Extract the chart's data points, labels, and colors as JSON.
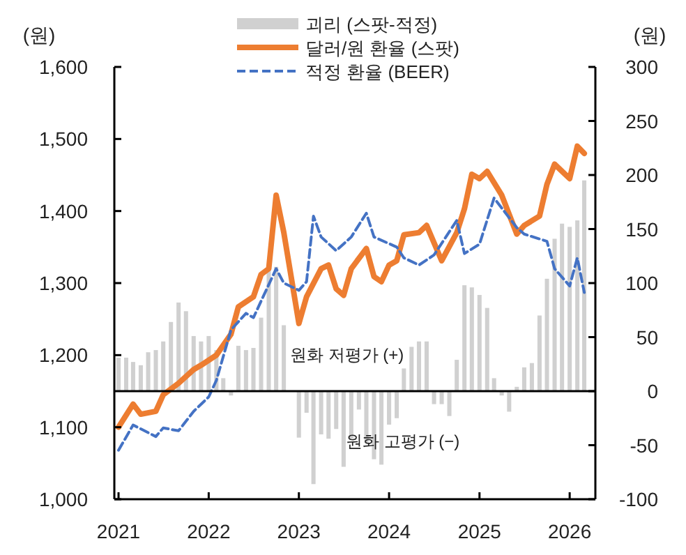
{
  "chart_data": {
    "type": "line",
    "xlim": [
      "2020-12-15",
      "2026-04-15"
    ],
    "xticks": [
      {
        "value": "2021",
        "label": "2021"
      },
      {
        "value": "2022",
        "label": "2022"
      },
      {
        "value": "2023",
        "label": "2023"
      },
      {
        "value": "2024",
        "label": "2024"
      },
      {
        "value": "2025",
        "label": "2025"
      },
      {
        "value": "2026",
        "label": "2026"
      }
    ],
    "ylim": [
      1000,
      1600
    ],
    "yticks": [
      {
        "value": 1000,
        "label": "1,000"
      },
      {
        "value": 1100,
        "label": "1,100"
      },
      {
        "value": 1200,
        "label": "1,200"
      },
      {
        "value": 1300,
        "label": "1,300"
      },
      {
        "value": 1400,
        "label": "1,400"
      },
      {
        "value": 1500,
        "label": "1,500"
      },
      {
        "value": 1600,
        "label": "1,600"
      }
    ],
    "y2lim": [
      -100,
      300
    ],
    "y2ticks": [
      -100,
      -50,
      0,
      50,
      100,
      150,
      200,
      250,
      300
    ],
    "ylabel": "(원)",
    "y2label": "(원)",
    "legend": "top",
    "grid": false,
    "ref_lines": [
      {
        "axis": "y2",
        "value": 0,
        "color": "#000000"
      }
    ],
    "annotations": [
      "원화 저평가 (+)",
      "원화 고평가 (−)"
    ],
    "series": [
      {
        "type": "bar",
        "axis": "y2",
        "name": "괴리 (스팟-적정)",
        "color": "#d0d0d0",
        "x": [
          "2021-01",
          "2021-02",
          "2021-03",
          "2021-04",
          "2021-05",
          "2021-06",
          "2021-07",
          "2021-08",
          "2021-09",
          "2021-10",
          "2021-11",
          "2021-12",
          "2022-01",
          "2022-02",
          "2022-03",
          "2022-04",
          "2022-05",
          "2022-06",
          "2022-07",
          "2022-08",
          "2022-09",
          "2022-10",
          "2022-11",
          "2022-12",
          "2023-01",
          "2023-02",
          "2023-03",
          "2023-04",
          "2023-05",
          "2023-06",
          "2023-07",
          "2023-08",
          "2023-09",
          "2023-10",
          "2023-11",
          "2023-12",
          "2024-01",
          "2024-02",
          "2024-03",
          "2024-04",
          "2024-05",
          "2024-06",
          "2024-07",
          "2024-08",
          "2024-09",
          "2024-10",
          "2024-11",
          "2024-12",
          "2025-01",
          "2025-02",
          "2025-03",
          "2025-04",
          "2025-05",
          "2025-06",
          "2025-07",
          "2025-08",
          "2025-09",
          "2025-10",
          "2025-11",
          "2025-12",
          "2026-01",
          "2026-02",
          "2026-03"
        ],
        "values": [
          31,
          31,
          27,
          24,
          36,
          38,
          46,
          64,
          82,
          74,
          51,
          46,
          51,
          38,
          12,
          -4,
          42,
          38,
          40,
          68,
          115,
          115,
          61,
          0,
          -43,
          -20,
          -86,
          -40,
          -44,
          -35,
          -70,
          -44,
          -17,
          -48,
          -63,
          -68,
          -31,
          -25,
          21,
          41,
          46,
          46,
          -12,
          -12,
          -23,
          29,
          98,
          96,
          89,
          77,
          12,
          -4,
          -19,
          4,
          22,
          26,
          70,
          104,
          141,
          155,
          152,
          158,
          195
        ]
      },
      {
        "name": "달러/원 환율 (스팟)",
        "color": "#ed7d31",
        "line_style": "solid",
        "x": [
          "2021-01",
          "2021-03",
          "2021-04",
          "2021-06",
          "2021-07",
          "2021-09",
          "2021-11",
          "2021-12",
          "2022-02",
          "2022-04",
          "2022-05",
          "2022-07",
          "2022-08",
          "2022-09",
          "2022-10",
          "2022-11",
          "2023-01",
          "2023-02",
          "2023-04",
          "2023-05",
          "2023-06",
          "2023-07",
          "2023-08",
          "2023-10",
          "2023-11",
          "2023-12",
          "2024-01",
          "2024-02",
          "2024-03",
          "2024-05",
          "2024-06",
          "2024-08",
          "2024-10",
          "2024-11",
          "2024-12",
          "2025-01",
          "2025-02",
          "2025-04",
          "2025-06",
          "2025-07",
          "2025-09",
          "2025-10",
          "2025-11",
          "2026-01",
          "2026-02",
          "2026-03"
        ],
        "values": [
          1100,
          1132,
          1118,
          1122,
          1145,
          1161,
          1180,
          1186,
          1200,
          1229,
          1267,
          1281,
          1312,
          1320,
          1422,
          1370,
          1244,
          1281,
          1320,
          1325,
          1292,
          1283,
          1320,
          1348,
          1309,
          1302,
          1325,
          1331,
          1367,
          1370,
          1380,
          1331,
          1370,
          1403,
          1451,
          1445,
          1455,
          1422,
          1368,
          1380,
          1393,
          1437,
          1465,
          1445,
          1490,
          1480
        ]
      },
      {
        "name": "적정 환율 (BEER)",
        "color": "#4472c4",
        "line_style": "dashed",
        "x": [
          "2021-01",
          "2021-03",
          "2021-06",
          "2021-07",
          "2021-09",
          "2021-11",
          "2022-01",
          "2022-02",
          "2022-04",
          "2022-06",
          "2022-07",
          "2022-10",
          "2022-11",
          "2023-01",
          "2023-02",
          "2023-03",
          "2023-04",
          "2023-06",
          "2023-08",
          "2023-10",
          "2023-11",
          "2024-02",
          "2024-03",
          "2024-05",
          "2024-07",
          "2024-10",
          "2024-11",
          "2025-01",
          "2025-03",
          "2025-06",
          "2025-07",
          "2025-10",
          "2025-11",
          "2026-01",
          "2026-02",
          "2026-03"
        ],
        "values": [
          1068,
          1103,
          1087,
          1099,
          1095,
          1122,
          1142,
          1165,
          1235,
          1258,
          1252,
          1320,
          1300,
          1290,
          1302,
          1393,
          1364,
          1345,
          1364,
          1397,
          1364,
          1350,
          1335,
          1325,
          1339,
          1387,
          1341,
          1354,
          1418,
          1377,
          1368,
          1358,
          1320,
          1296,
          1335,
          1287
        ]
      }
    ]
  }
}
